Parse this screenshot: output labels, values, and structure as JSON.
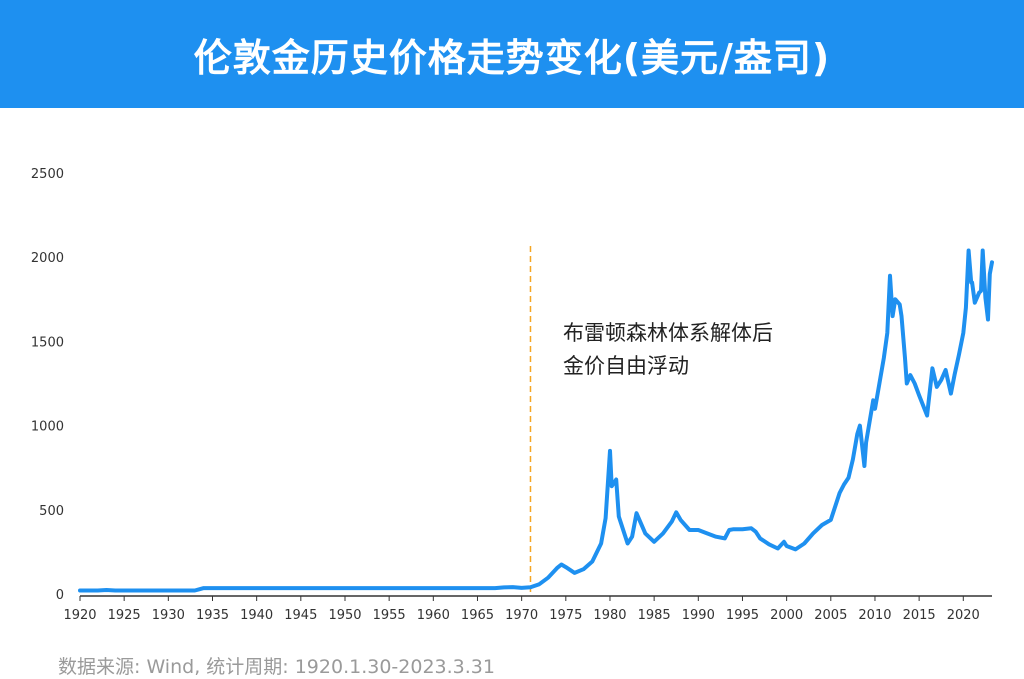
{
  "chart_data": {
    "type": "line",
    "title": "伦敦金历史价格走势变化(美元/盎司)",
    "xlabel": "",
    "ylabel": "",
    "xlim": [
      1920,
      2023.25
    ],
    "ylim": [
      0,
      2500
    ],
    "y_ticks": [
      0,
      500,
      1000,
      1500,
      2000,
      2500
    ],
    "x_ticks": [
      1920,
      1925,
      1930,
      1935,
      1940,
      1945,
      1950,
      1955,
      1960,
      1965,
      1970,
      1975,
      1980,
      1985,
      1990,
      1995,
      2000,
      2005,
      2010,
      2015,
      2020
    ],
    "grid": false,
    "legend": "none",
    "colors": {
      "series": "#1e90f0",
      "marker_line": "#f5a623",
      "axis": "#333333"
    },
    "series": [
      {
        "points": [
          [
            1920,
            20.7
          ],
          [
            1922,
            20.7
          ],
          [
            1923,
            24
          ],
          [
            1924,
            21
          ],
          [
            1925,
            20.7
          ],
          [
            1929,
            20.7
          ],
          [
            1933.0,
            20.7
          ],
          [
            1933.5,
            28
          ],
          [
            1934,
            35
          ],
          [
            1935,
            35
          ],
          [
            1940,
            35
          ],
          [
            1945,
            35
          ],
          [
            1950,
            35
          ],
          [
            1955,
            35
          ],
          [
            1960,
            35
          ],
          [
            1965,
            35
          ],
          [
            1967,
            35
          ],
          [
            1968,
            39
          ],
          [
            1969,
            41
          ],
          [
            1970,
            36
          ],
          [
            1971,
            40
          ],
          [
            1972,
            58
          ],
          [
            1973,
            97
          ],
          [
            1974,
            154
          ],
          [
            1974.5,
            175
          ],
          [
            1975,
            160
          ],
          [
            1976,
            125
          ],
          [
            1977,
            147
          ],
          [
            1978,
            193
          ],
          [
            1979,
            300
          ],
          [
            1979.5,
            450
          ],
          [
            1980.0,
            850
          ],
          [
            1980.2,
            640
          ],
          [
            1980.7,
            680
          ],
          [
            1981,
            460
          ],
          [
            1982,
            300
          ],
          [
            1982.5,
            340
          ],
          [
            1983,
            480
          ],
          [
            1983.5,
            420
          ],
          [
            1984,
            360
          ],
          [
            1985,
            310
          ],
          [
            1986,
            360
          ],
          [
            1987,
            430
          ],
          [
            1987.5,
            485
          ],
          [
            1988,
            440
          ],
          [
            1989,
            380
          ],
          [
            1990,
            380
          ],
          [
            1991,
            360
          ],
          [
            1992,
            340
          ],
          [
            1993,
            330
          ],
          [
            1993.5,
            380
          ],
          [
            1994,
            385
          ],
          [
            1995,
            385
          ],
          [
            1996,
            390
          ],
          [
            1996.5,
            370
          ],
          [
            1997,
            330
          ],
          [
            1998,
            295
          ],
          [
            1999,
            270
          ],
          [
            1999.7,
            310
          ],
          [
            2000,
            285
          ],
          [
            2001,
            265
          ],
          [
            2002,
            300
          ],
          [
            2003,
            360
          ],
          [
            2004,
            410
          ],
          [
            2005,
            440
          ],
          [
            2006,
            600
          ],
          [
            2006.5,
            650
          ],
          [
            2007,
            690
          ],
          [
            2007.5,
            800
          ],
          [
            2008,
            950
          ],
          [
            2008.3,
            1000
          ],
          [
            2008.8,
            760
          ],
          [
            2009,
            900
          ],
          [
            2009.8,
            1150
          ],
          [
            2010,
            1100
          ],
          [
            2010.5,
            1250
          ],
          [
            2011,
            1400
          ],
          [
            2011.4,
            1550
          ],
          [
            2011.7,
            1890
          ],
          [
            2012,
            1650
          ],
          [
            2012.3,
            1750
          ],
          [
            2012.8,
            1720
          ],
          [
            2013,
            1650
          ],
          [
            2013.4,
            1400
          ],
          [
            2013.6,
            1250
          ],
          [
            2014,
            1300
          ],
          [
            2014.5,
            1250
          ],
          [
            2015,
            1180
          ],
          [
            2015.9,
            1060
          ],
          [
            2016,
            1110
          ],
          [
            2016.5,
            1340
          ],
          [
            2017,
            1230
          ],
          [
            2017.5,
            1270
          ],
          [
            2018,
            1330
          ],
          [
            2018.6,
            1190
          ],
          [
            2019,
            1300
          ],
          [
            2019.5,
            1420
          ],
          [
            2020,
            1550
          ],
          [
            2020.3,
            1700
          ],
          [
            2020.6,
            2040
          ],
          [
            2020.9,
            1850
          ],
          [
            2021,
            1850
          ],
          [
            2021.3,
            1730
          ],
          [
            2021.8,
            1790
          ],
          [
            2022,
            1800
          ],
          [
            2022.2,
            2040
          ],
          [
            2022.5,
            1760
          ],
          [
            2022.8,
            1630
          ],
          [
            2023,
            1900
          ],
          [
            2023.25,
            1970
          ]
        ]
      }
    ],
    "annotations": [
      {
        "x": 1971,
        "type": "vline",
        "text_line1": "布雷顿森林体系解体后",
        "text_line2": "金价自由浮动"
      }
    ]
  },
  "footer": {
    "source": "数据来源: Wind, 统计周期: 1920.1.30-2023.3.31"
  }
}
